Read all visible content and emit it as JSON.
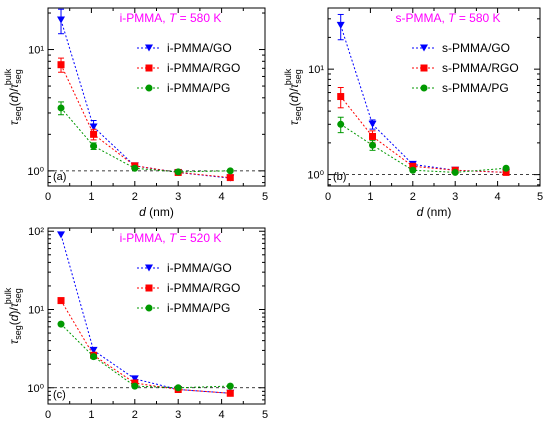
{
  "chart_data": [
    {
      "type": "line",
      "panel_tag": "(a)",
      "title": "i-PMMA, T = 580 K",
      "title_color": "#ff00ff",
      "xlabel": "d (nm)",
      "ylabel": "τseg(d)/τseg bulk",
      "x_range": [
        0,
        5
      ],
      "y_range": [
        0.75,
        22
      ],
      "y_scale": "log",
      "x_ticks": [
        "0",
        "1",
        "2",
        "3",
        "4",
        "5"
      ],
      "y_ticks": [
        {
          "value": 1,
          "label": "10⁰"
        },
        {
          "value": 10,
          "label": "10¹"
        }
      ],
      "reference_line": 1,
      "legend_position": "top-right",
      "series": [
        {
          "name": "i-PMMA/GO",
          "color": "#0000ff",
          "marker": "triangle-down",
          "x": [
            0.3,
            1.05,
            2.0,
            3.0,
            4.2
          ],
          "y": [
            17.5,
            2.3,
            1.1,
            0.97,
            0.87
          ],
          "err": [
            4.0,
            0.3,
            0.0,
            0.0,
            0.0
          ]
        },
        {
          "name": "i-PMMA/RGO",
          "color": "#ff0000",
          "marker": "square",
          "x": [
            0.3,
            1.05,
            2.0,
            3.0,
            4.2
          ],
          "y": [
            7.5,
            2.0,
            1.1,
            0.97,
            0.88
          ],
          "err": [
            1.0,
            0.2,
            0.0,
            0.0,
            0.0
          ]
        },
        {
          "name": "i-PMMA/PG",
          "color": "#009900",
          "marker": "circle",
          "x": [
            0.3,
            1.05,
            2.0,
            3.0,
            4.2
          ],
          "y": [
            3.3,
            1.6,
            1.05,
            0.98,
            1.0
          ],
          "err": [
            0.4,
            0.1,
            0.0,
            0.0,
            0.0
          ]
        }
      ]
    },
    {
      "type": "line",
      "panel_tag": "(b)",
      "title": "s-PMMA, T = 580 K",
      "title_color": "#ff00ff",
      "xlabel": "d (nm)",
      "ylabel": "τseg(d)/τseg bulk",
      "x_range": [
        0,
        5
      ],
      "y_range": [
        0.78,
        38
      ],
      "y_scale": "log",
      "x_ticks": [
        "0",
        "1",
        "2",
        "3",
        "4",
        "5"
      ],
      "y_ticks": [
        {
          "value": 1,
          "label": "10⁰"
        },
        {
          "value": 10,
          "label": "10¹"
        }
      ],
      "reference_line": 1,
      "legend_position": "top-right",
      "series": [
        {
          "name": "s-PMMA/GO",
          "color": "#0000ff",
          "marker": "triangle-down",
          "x": [
            0.3,
            1.05,
            2.0,
            3.0,
            4.2
          ],
          "y": [
            26,
            3.0,
            1.25,
            1.1,
            1.05
          ],
          "err": [
            7.0,
            0.3,
            0.0,
            0.0,
            0.0
          ]
        },
        {
          "name": "s-PMMA/RGO",
          "color": "#ff0000",
          "marker": "square",
          "x": [
            0.3,
            1.05,
            2.0,
            3.0,
            4.2
          ],
          "y": [
            5.5,
            2.3,
            1.2,
            1.1,
            1.05
          ],
          "err": [
            1.2,
            0.3,
            0.0,
            0.0,
            0.0
          ]
        },
        {
          "name": "s-PMMA/PG",
          "color": "#009900",
          "marker": "circle",
          "x": [
            0.3,
            1.05,
            2.0,
            3.0,
            4.2
          ],
          "y": [
            3.0,
            1.9,
            1.1,
            1.05,
            1.15
          ],
          "err": [
            0.5,
            0.2,
            0.0,
            0.0,
            0.0
          ]
        }
      ]
    },
    {
      "type": "line",
      "panel_tag": "(c)",
      "title": "i-PMMA, T = 520 K",
      "title_color": "#ff00ff",
      "xlabel": "d (nm)",
      "ylabel": "τseg(d)/τseg bulk",
      "x_range": [
        0,
        5
      ],
      "y_range": [
        0.62,
        110
      ],
      "y_scale": "log",
      "x_ticks": [
        "0",
        "1",
        "2",
        "3",
        "4",
        "5"
      ],
      "y_ticks": [
        {
          "value": 1,
          "label": "10⁰"
        },
        {
          "value": 10,
          "label": "10¹"
        },
        {
          "value": 100,
          "label": "10²"
        }
      ],
      "reference_line": 1,
      "legend_position": "top-right",
      "series": [
        {
          "name": "i-PMMA/GO",
          "color": "#0000ff",
          "marker": "triangle-down",
          "x": [
            0.3,
            1.05,
            2.0,
            3.0,
            4.2
          ],
          "y": [
            90,
            3.0,
            1.3,
            0.95,
            0.85
          ],
          "err": [
            0.0,
            0.0,
            0.0,
            0.0,
            0.0
          ]
        },
        {
          "name": "i-PMMA/RGO",
          "color": "#ff0000",
          "marker": "square",
          "x": [
            0.3,
            1.05,
            2.0,
            3.0,
            4.2
          ],
          "y": [
            13,
            2.6,
            1.15,
            0.95,
            0.85
          ],
          "err": [
            0.0,
            0.0,
            0.0,
            0.0,
            0.0
          ]
        },
        {
          "name": "i-PMMA/PG",
          "color": "#009900",
          "marker": "circle",
          "x": [
            0.3,
            1.05,
            2.0,
            3.0,
            4.2
          ],
          "y": [
            6.5,
            2.5,
            1.05,
            1.0,
            1.05
          ],
          "err": [
            0.0,
            0.0,
            0.0,
            0.0,
            0.0
          ]
        }
      ]
    }
  ]
}
